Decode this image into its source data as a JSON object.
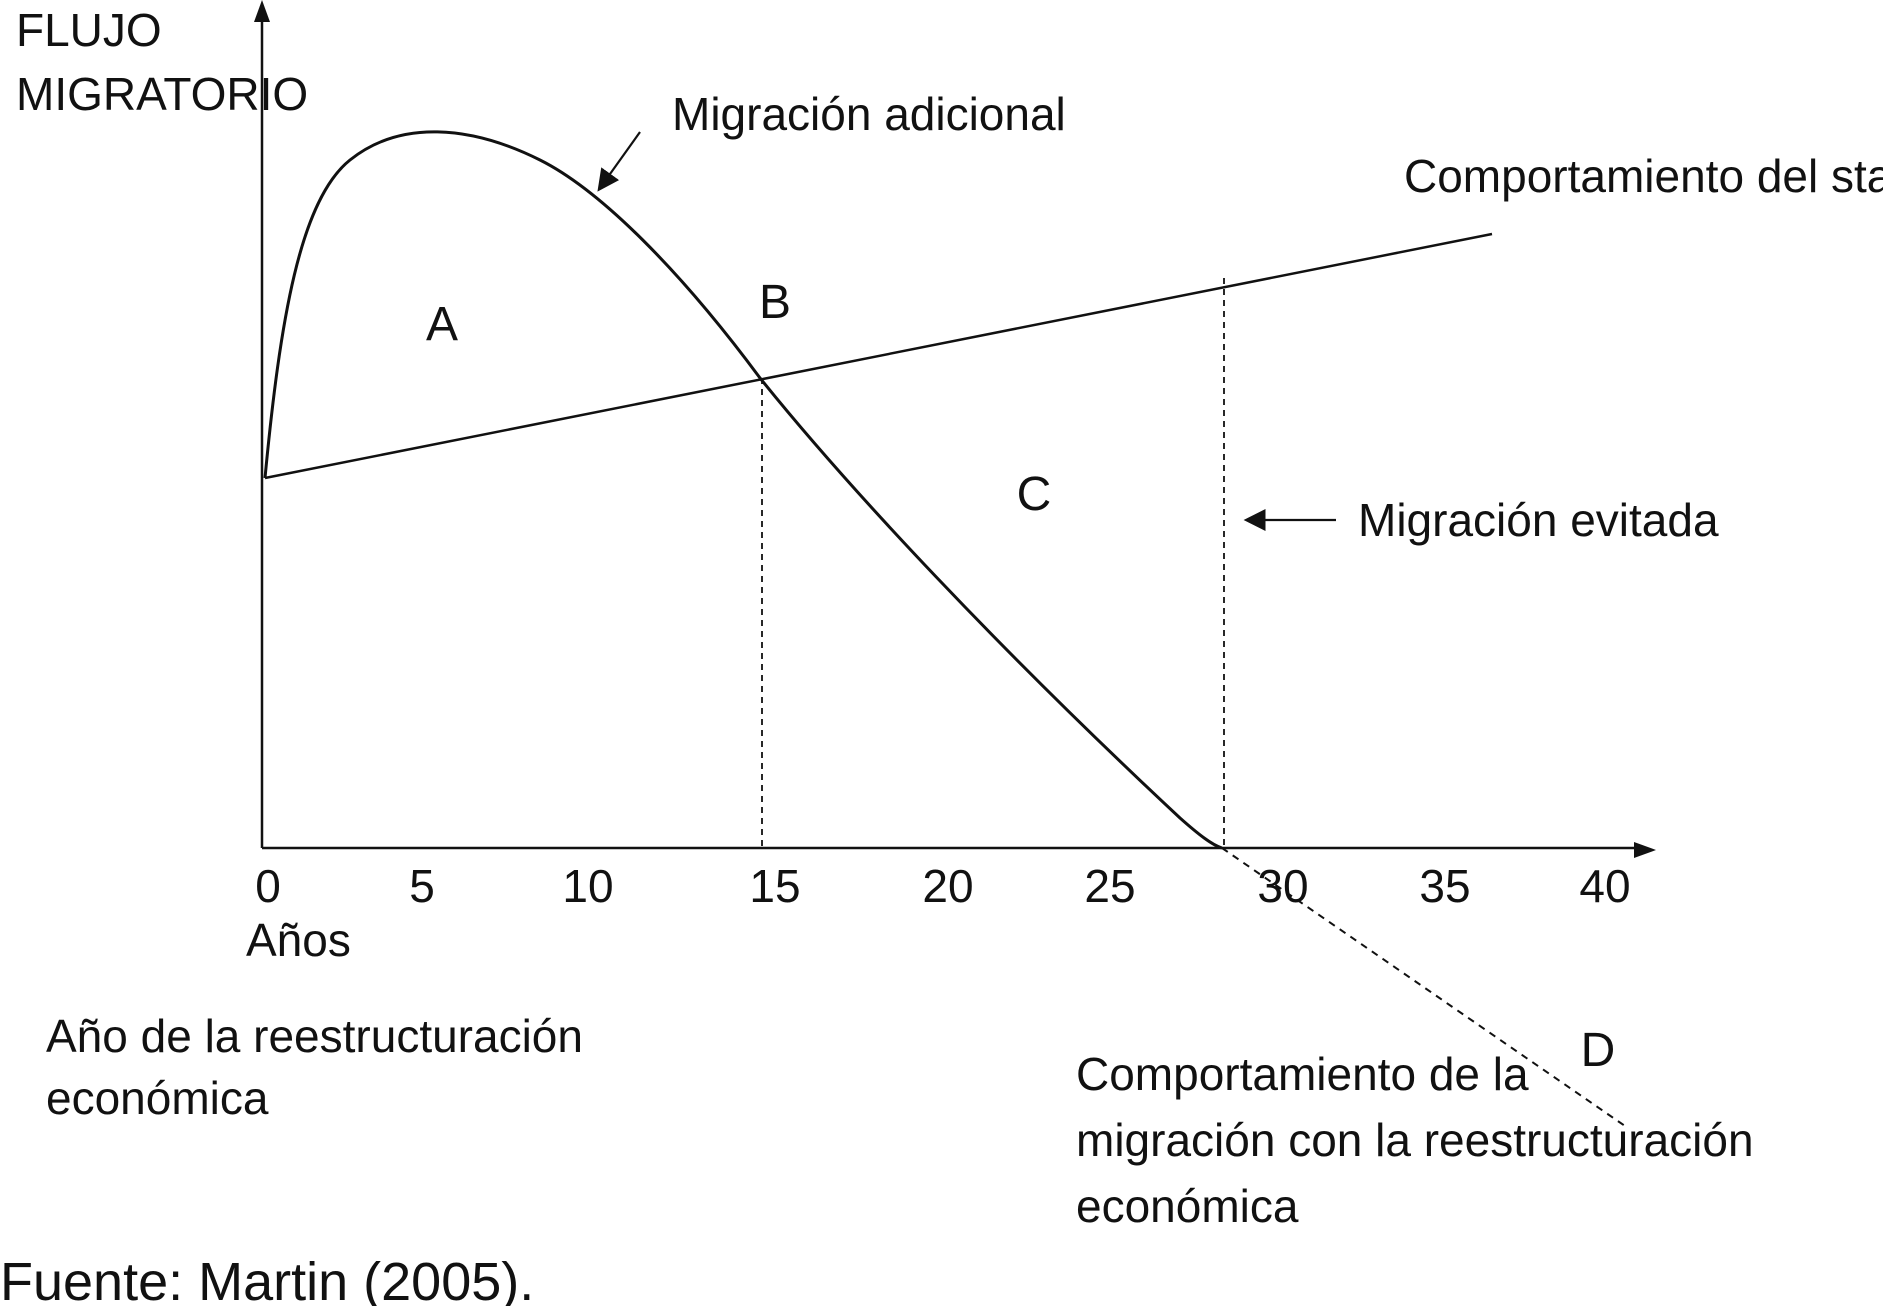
{
  "diagram": {
    "y_axis_label_line1": "FLUJO",
    "y_axis_label_line2": "MIGRATORIO",
    "x_axis_unit": "Años",
    "x_ticks": [
      "0",
      "5",
      "10",
      "15",
      "20",
      "25",
      "30",
      "35",
      "40"
    ],
    "annotations": {
      "additional_migration": "Migración adicional",
      "status_quo": "Comportamiento del statu quo",
      "avoided_migration": "Migración evitada",
      "restructuring_year_line1": "Año de la reestructuración",
      "restructuring_year_line2": "económica",
      "restructuring_behavior_line1": "Comportamiento de la",
      "restructuring_behavior_line2": "migración con la reestructuración",
      "restructuring_behavior_line3": "económica"
    },
    "regions": {
      "a": "A",
      "b": "B",
      "c": "C",
      "d": "D"
    },
    "colors": {
      "ink": "#111111",
      "background": "#ffffff"
    }
  },
  "source_note": "Fuente: Martin (2005)."
}
